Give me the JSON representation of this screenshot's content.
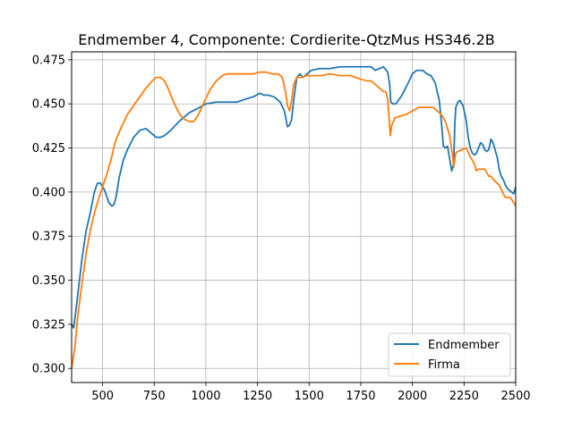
{
  "chart_data": {
    "type": "line",
    "title": "Endmember 4, Componente: Cordierite-QtzMus HS346.2B",
    "xlabel": "",
    "ylabel": "",
    "xlim": [
      350,
      2500
    ],
    "ylim": [
      0.292,
      0.4795
    ],
    "xticks": [
      500,
      750,
      1000,
      1250,
      1500,
      1750,
      2000,
      2250,
      2500
    ],
    "xtick_labels": [
      "500",
      "750",
      "1000",
      "1250",
      "1500",
      "1750",
      "2000",
      "2250",
      "2500"
    ],
    "yticks": [
      0.3,
      0.325,
      0.35,
      0.375,
      0.4,
      0.425,
      0.45,
      0.475
    ],
    "ytick_labels": [
      "0.300",
      "0.325",
      "0.350",
      "0.375",
      "0.400",
      "0.425",
      "0.450",
      "0.475"
    ],
    "grid": true,
    "legend_position": "lower-right",
    "series": [
      {
        "name": "Endmember",
        "color": "#1f77b4",
        "x": [
          350,
          360,
          380,
          400,
          420,
          440,
          460,
          475,
          490,
          510,
          530,
          545,
          555,
          565,
          580,
          600,
          620,
          650,
          680,
          710,
          740,
          760,
          780,
          800,
          830,
          870,
          920,
          970,
          1000,
          1050,
          1100,
          1150,
          1200,
          1230,
          1260,
          1280,
          1300,
          1330,
          1360,
          1380,
          1395,
          1405,
          1415,
          1425,
          1440,
          1455,
          1470,
          1490,
          1510,
          1550,
          1600,
          1650,
          1700,
          1750,
          1780,
          1800,
          1820,
          1840,
          1860,
          1880,
          1890,
          1895,
          1905,
          1920,
          1950,
          1980,
          2000,
          2020,
          2050,
          2070,
          2090,
          2110,
          2130,
          2140,
          2150,
          2160,
          2170,
          2180,
          2190,
          2200,
          2205,
          2210,
          2220,
          2230,
          2245,
          2260,
          2270,
          2280,
          2290,
          2300,
          2310,
          2320,
          2330,
          2340,
          2350,
          2360,
          2370,
          2380,
          2390,
          2400,
          2410,
          2420,
          2430,
          2440,
          2450,
          2460,
          2470,
          2480,
          2490,
          2500
        ],
        "values": [
          0.325,
          0.323,
          0.342,
          0.362,
          0.378,
          0.388,
          0.4,
          0.405,
          0.405,
          0.401,
          0.394,
          0.392,
          0.393,
          0.397,
          0.408,
          0.418,
          0.424,
          0.431,
          0.435,
          0.436,
          0.433,
          0.431,
          0.431,
          0.432,
          0.435,
          0.44,
          0.445,
          0.448,
          0.45,
          0.451,
          0.451,
          0.451,
          0.453,
          0.454,
          0.456,
          0.455,
          0.455,
          0.454,
          0.451,
          0.446,
          0.437,
          0.438,
          0.441,
          0.452,
          0.465,
          0.467,
          0.465,
          0.467,
          0.469,
          0.47,
          0.47,
          0.471,
          0.471,
          0.471,
          0.471,
          0.471,
          0.469,
          0.47,
          0.471,
          0.468,
          0.461,
          0.451,
          0.45,
          0.45,
          0.455,
          0.462,
          0.467,
          0.469,
          0.469,
          0.467,
          0.466,
          0.462,
          0.452,
          0.44,
          0.426,
          0.425,
          0.426,
          0.419,
          0.412,
          0.416,
          0.438,
          0.448,
          0.451,
          0.452,
          0.449,
          0.441,
          0.431,
          0.425,
          0.422,
          0.421,
          0.422,
          0.425,
          0.428,
          0.427,
          0.424,
          0.423,
          0.424,
          0.43,
          0.428,
          0.424,
          0.42,
          0.413,
          0.409,
          0.407,
          0.404,
          0.402,
          0.401,
          0.4,
          0.399,
          0.403
        ]
      },
      {
        "name": "Firma",
        "color": "#ff7f0e",
        "x": [
          350,
          365,
          380,
          400,
          420,
          440,
          460,
          480,
          500,
          520,
          540,
          560,
          580,
          600,
          620,
          650,
          680,
          710,
          740,
          760,
          780,
          800,
          820,
          840,
          860,
          880,
          900,
          920,
          940,
          960,
          980,
          1000,
          1020,
          1050,
          1080,
          1100,
          1130,
          1160,
          1200,
          1230,
          1260,
          1290,
          1320,
          1350,
          1370,
          1385,
          1395,
          1405,
          1415,
          1425,
          1440,
          1460,
          1490,
          1520,
          1560,
          1600,
          1650,
          1700,
          1750,
          1780,
          1800,
          1820,
          1840,
          1860,
          1870,
          1880,
          1887,
          1893,
          1900,
          1915,
          1940,
          1970,
          2000,
          2030,
          2060,
          2080,
          2100,
          2120,
          2140,
          2160,
          2180,
          2195,
          2200,
          2210,
          2220,
          2240,
          2260,
          2280,
          2290,
          2300,
          2310,
          2320,
          2330,
          2350,
          2370,
          2380,
          2400,
          2420,
          2440,
          2450,
          2460,
          2470,
          2480,
          2490,
          2500
        ],
        "values": [
          0.3,
          0.311,
          0.33,
          0.348,
          0.365,
          0.378,
          0.388,
          0.396,
          0.403,
          0.41,
          0.418,
          0.428,
          0.434,
          0.439,
          0.444,
          0.449,
          0.454,
          0.459,
          0.463,
          0.465,
          0.465,
          0.463,
          0.458,
          0.452,
          0.447,
          0.443,
          0.441,
          0.44,
          0.44,
          0.443,
          0.448,
          0.453,
          0.458,
          0.463,
          0.466,
          0.467,
          0.467,
          0.467,
          0.467,
          0.467,
          0.468,
          0.468,
          0.467,
          0.467,
          0.465,
          0.457,
          0.449,
          0.446,
          0.452,
          0.461,
          0.465,
          0.465,
          0.466,
          0.466,
          0.466,
          0.467,
          0.466,
          0.466,
          0.464,
          0.463,
          0.463,
          0.461,
          0.459,
          0.457,
          0.457,
          0.453,
          0.442,
          0.432,
          0.438,
          0.442,
          0.443,
          0.444,
          0.446,
          0.448,
          0.448,
          0.448,
          0.448,
          0.446,
          0.444,
          0.44,
          0.432,
          0.42,
          0.414,
          0.422,
          0.423,
          0.424,
          0.425,
          0.42,
          0.418,
          0.416,
          0.412,
          0.413,
          0.413,
          0.413,
          0.409,
          0.409,
          0.406,
          0.404,
          0.399,
          0.397,
          0.397,
          0.397,
          0.396,
          0.394,
          0.392
        ]
      }
    ]
  }
}
